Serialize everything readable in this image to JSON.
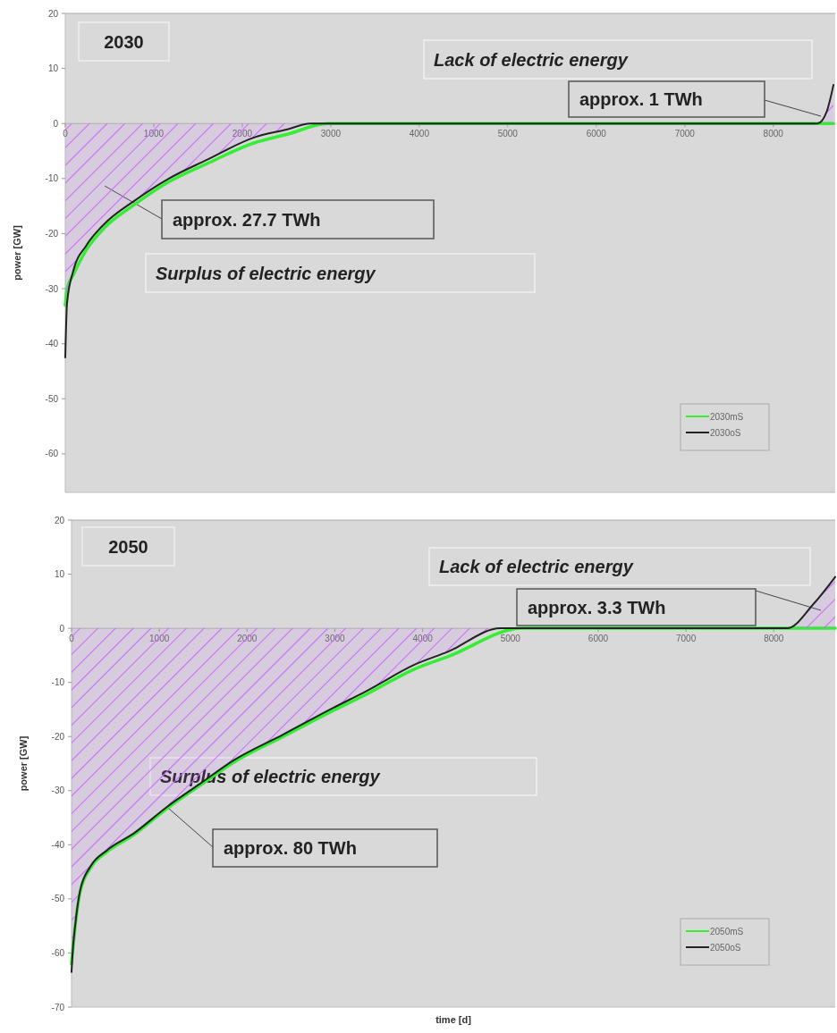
{
  "chart_data": [
    {
      "type": "line",
      "title": "2030",
      "ylabel": "power [GW]",
      "xlim": [
        0,
        8700
      ],
      "ylim": [
        -67,
        20
      ],
      "xticks": [
        0,
        1000,
        2000,
        3000,
        4000,
        5000,
        6000,
        7000,
        8000
      ],
      "yticks": [
        20,
        10,
        0,
        -10,
        -20,
        -30,
        -40,
        -50,
        -60
      ],
      "legend": "bottom right",
      "annotations": [
        "Lack of electric energy",
        "approx. 1 TWh",
        "approx. 27.7 TWh",
        "Surplus of electric energy"
      ],
      "series": [
        {
          "name": "2030mS",
          "color": "#33ee33",
          "x": [
            0,
            20,
            90,
            236,
            451,
            775,
            1170,
            1600,
            2140,
            2500,
            2970,
            4000,
            5000,
            6000,
            7000,
            8000,
            8680
          ],
          "values": [
            -33,
            -30,
            -27.5,
            -23,
            -18.8,
            -14.8,
            -10.6,
            -7.3,
            -3.5,
            -2,
            0,
            0,
            0,
            0,
            0,
            0,
            0
          ]
        },
        {
          "type": "area",
          "name": "2030oS",
          "color": "#222222",
          "x": [
            0,
            20,
            90,
            236,
            451,
            775,
            1170,
            1600,
            2140,
            2500,
            2770,
            3000,
            4000,
            5000,
            6000,
            7000,
            8000,
            8500,
            8600,
            8680
          ],
          "values": [
            -42.5,
            -32.6,
            -26.8,
            -22.2,
            -18.1,
            -14.1,
            -10,
            -6.6,
            -2.5,
            -1.1,
            0,
            0,
            0,
            0,
            0,
            0,
            0,
            0,
            2,
            7
          ]
        }
      ]
    },
    {
      "type": "line",
      "title": "2050",
      "ylabel": "power [GW]",
      "xlabel": "time [d]",
      "xlim": [
        0,
        8700
      ],
      "ylim": [
        -70,
        20
      ],
      "xticks": [
        0,
        1000,
        2000,
        3000,
        4000,
        5000,
        6000,
        7000,
        8000
      ],
      "yticks": [
        20,
        10,
        0,
        -10,
        -20,
        -30,
        -40,
        -50,
        -60,
        -70
      ],
      "legend": "bottom right",
      "annotations": [
        "Lack of electric energy",
        "approx. 3.3 TWh",
        "Surplus of electric energy",
        {
          "text": "approx. 80 TWh",
          "x": 1087,
          "y": -33
        }
      ],
      "series": [
        {
          "name": "2050mS",
          "color": "#33ee33",
          "x": [
            0,
            45,
            100,
            216,
            405,
            708,
            1087,
            1466,
            1845,
            2413,
            2981,
            3360,
            3911,
            4293,
            5134,
            6000,
            7000,
            8000,
            8700
          ],
          "values": [
            -62,
            -54.6,
            -48.6,
            -44.3,
            -41.3,
            -38.2,
            -33.3,
            -29,
            -24.8,
            -20,
            -15.2,
            -12.2,
            -7.5,
            -5.2,
            0,
            0,
            0,
            0,
            0
          ]
        },
        {
          "type": "area",
          "name": "2050oS",
          "color": "#222222",
          "x": [
            0,
            8,
            45,
            100,
            216,
            405,
            708,
            1087,
            1466,
            1845,
            2413,
            2981,
            3360,
            3911,
            4293,
            4885,
            5500,
            6000,
            7000,
            8000,
            8152,
            8458,
            8700
          ],
          "values": [
            -63.5,
            -61,
            -54.4,
            -48.3,
            -44,
            -41,
            -37.9,
            -33,
            -28.7,
            -24.4,
            -19.6,
            -14.7,
            -11.6,
            -6.7,
            -4.3,
            0,
            0,
            0,
            0,
            0,
            0,
            4.6,
            9.5
          ]
        }
      ]
    }
  ]
}
